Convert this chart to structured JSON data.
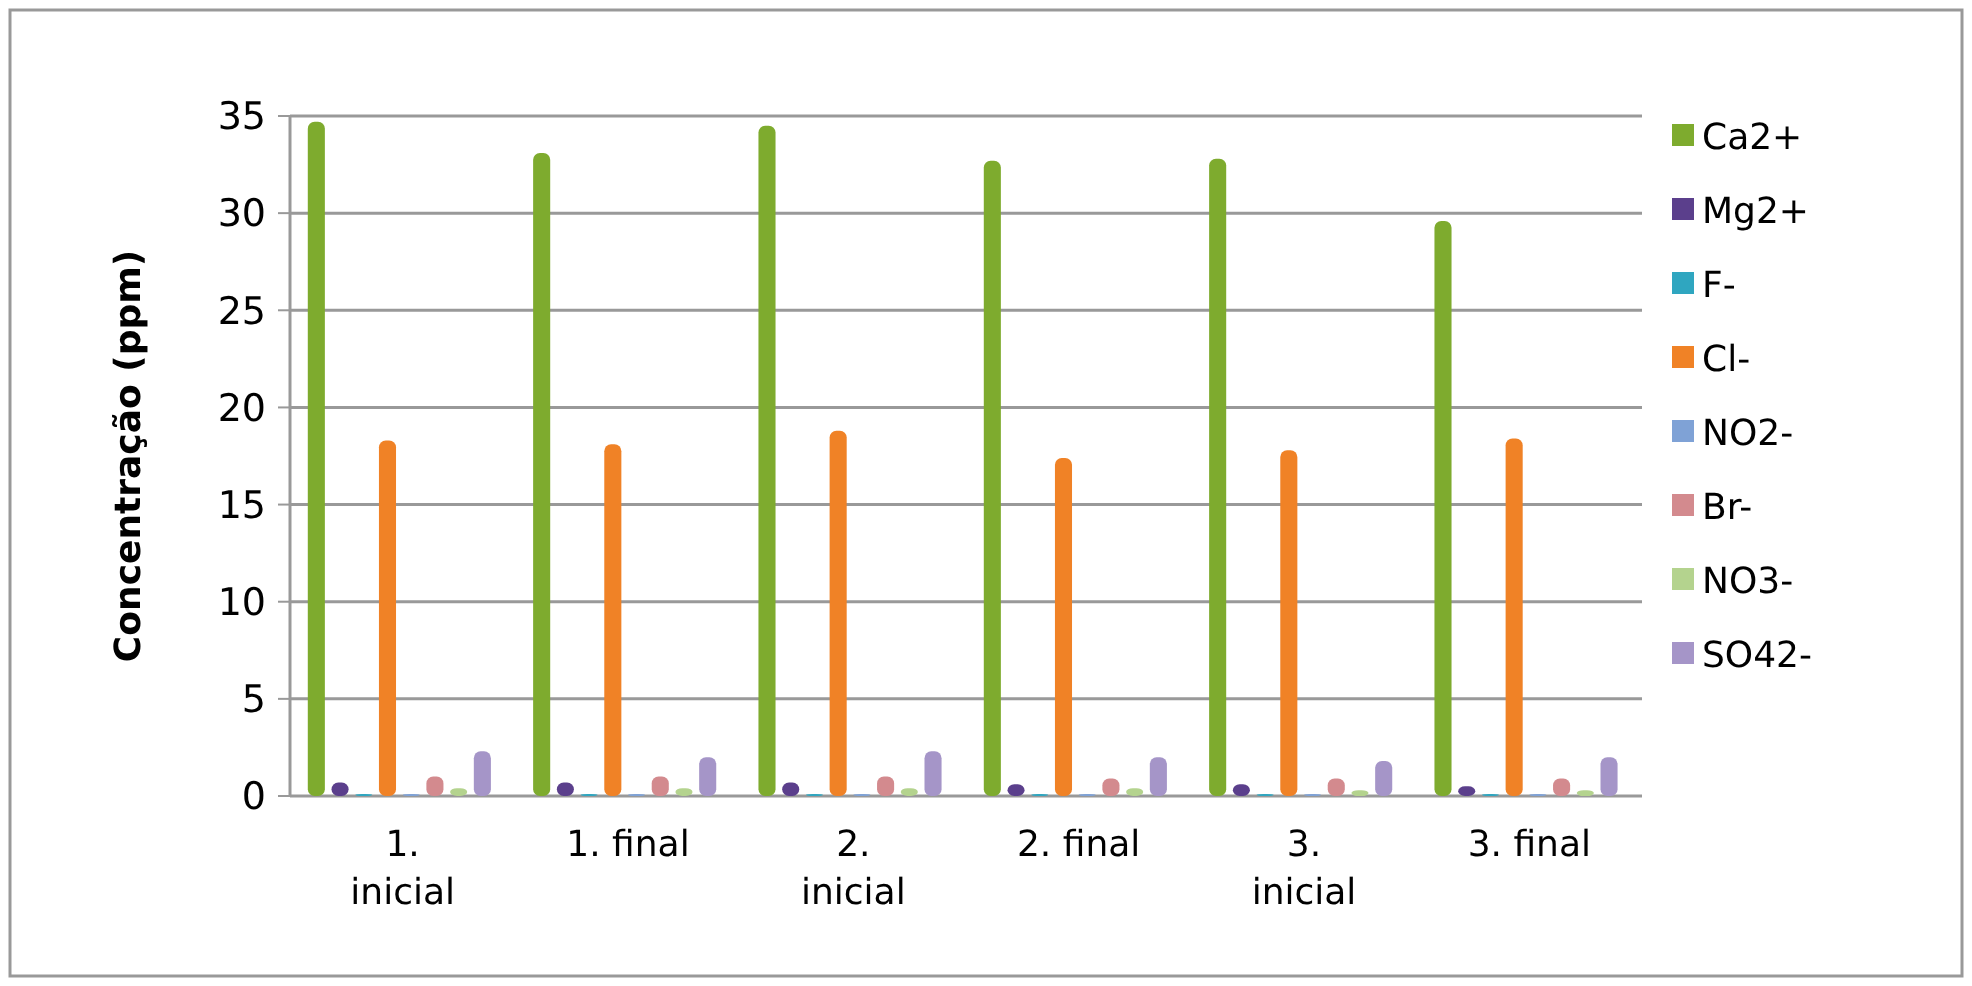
{
  "chart_data": {
    "type": "bar",
    "ylabel": "Concentração (ppm)",
    "categories": [
      "1. inicial",
      "1. final",
      "2. inicial",
      "2. final",
      "3. inicial",
      "3. final"
    ],
    "series": [
      {
        "name": "Ca2+",
        "color": "#7eab2e",
        "values": [
          34.7,
          33.1,
          34.5,
          32.7,
          32.8,
          29.6
        ]
      },
      {
        "name": "Mg2+",
        "color": "#5b3f8c",
        "values": [
          0.7,
          0.7,
          0.7,
          0.6,
          0.6,
          0.5
        ]
      },
      {
        "name": "F-",
        "color": "#2fa6c0",
        "values": [
          0.1,
          0.1,
          0.1,
          0.1,
          0.1,
          0.1
        ]
      },
      {
        "name": "Cl-",
        "color": "#f08226",
        "values": [
          18.3,
          18.1,
          18.8,
          17.4,
          17.8,
          18.4
        ]
      },
      {
        "name": "NO2-",
        "color": "#7fa2d6",
        "values": [
          0.1,
          0.1,
          0.1,
          0.1,
          0.1,
          0.1
        ]
      },
      {
        "name": "Br-",
        "color": "#d38a8e",
        "values": [
          1.0,
          1.0,
          1.0,
          0.9,
          0.9,
          0.9
        ]
      },
      {
        "name": "NO3-",
        "color": "#b4d38e",
        "values": [
          0.4,
          0.4,
          0.4,
          0.4,
          0.3,
          0.3
        ]
      },
      {
        "name": "SO42-",
        "color": "#a595c8",
        "values": [
          2.3,
          2.0,
          2.3,
          2.0,
          1.8,
          2.0
        ]
      }
    ],
    "ylim": [
      0,
      35
    ],
    "yticks": [
      0,
      5,
      10,
      15,
      20,
      25,
      30,
      35
    ],
    "grid": "y",
    "legend": "right"
  }
}
